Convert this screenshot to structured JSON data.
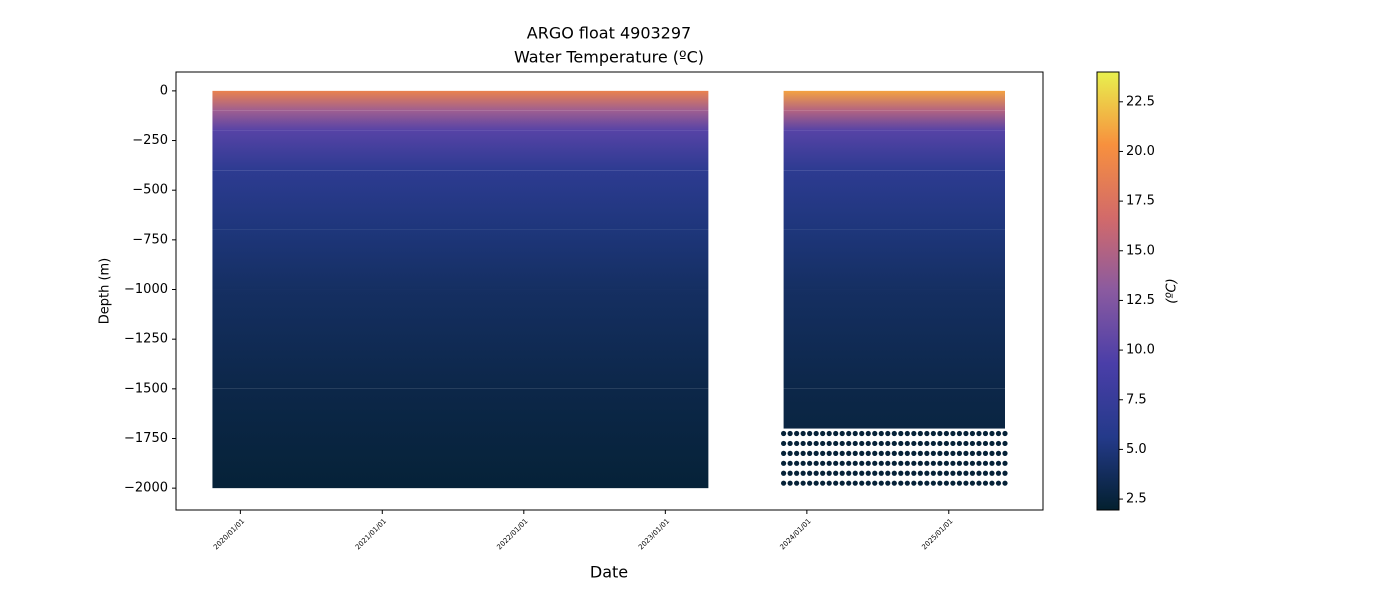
{
  "chart_data": {
    "type": "profile-section",
    "title": "ARGO float 4903297",
    "subtitle": "Water Temperature (ºC)",
    "x_label": "Date",
    "y_label": "Depth (m)",
    "colorbar_label": "(ºC)",
    "xlim": [
      "2019/07/19",
      "2025/09/01"
    ],
    "xticks": [
      "2020/01/01",
      "2021/01/01",
      "2022/01/01",
      "2023/01/01",
      "2024/01/01",
      "2025/01/01"
    ],
    "ylim": [
      -2110,
      95
    ],
    "yticks": [
      0,
      {
        "value": -250,
        "label": "−250"
      },
      {
        "value": -500,
        "label": "−500"
      },
      {
        "value": -750,
        "label": "−750"
      },
      {
        "value": -1000,
        "label": "−1000"
      },
      {
        "value": -1250,
        "label": "−1250"
      },
      {
        "value": -1500,
        "label": "−1500"
      },
      {
        "value": -1750,
        "label": "−1750"
      },
      {
        "value": -2000,
        "label": "−2000"
      }
    ],
    "clim": [
      1.95,
      24
    ],
    "cticks": [
      2.5,
      {
        "value": 5,
        "label": "5.0"
      },
      7.5,
      {
        "value": 10,
        "label": "10.0"
      },
      12.5,
      {
        "value": 15,
        "label": "15.0"
      },
      17.5,
      {
        "value": 20,
        "label": "20.0"
      },
      22.5
    ],
    "colormap": [
      "#03202f",
      "#243a8a",
      "#4a3ea8",
      "#8a5aa0",
      "#d26a6a",
      "#f7903e",
      "#e8f04e"
    ],
    "segments": [
      {
        "start": "2019/10/21",
        "end": "2023/04/22",
        "depths": [
          0,
          -100,
          -200,
          -400,
          -700,
          -1000,
          -1500,
          -2000
        ],
        "temps": [
          19,
          14,
          10,
          6.5,
          5,
          4,
          3,
          2.3
        ]
      },
      {
        "start": "2023/11/02",
        "end": "2025/05/26",
        "depths": [
          0,
          -100,
          -200,
          -400,
          -700,
          -1000,
          -1500,
          -1700
        ],
        "temps": [
          21,
          15,
          10,
          6.5,
          5,
          4,
          3,
          2.7
        ],
        "dot_depths": [
          -1725,
          -1775,
          -1825,
          -1875,
          -1925,
          -1975
        ],
        "dot_temp": 2.3
      }
    ]
  }
}
